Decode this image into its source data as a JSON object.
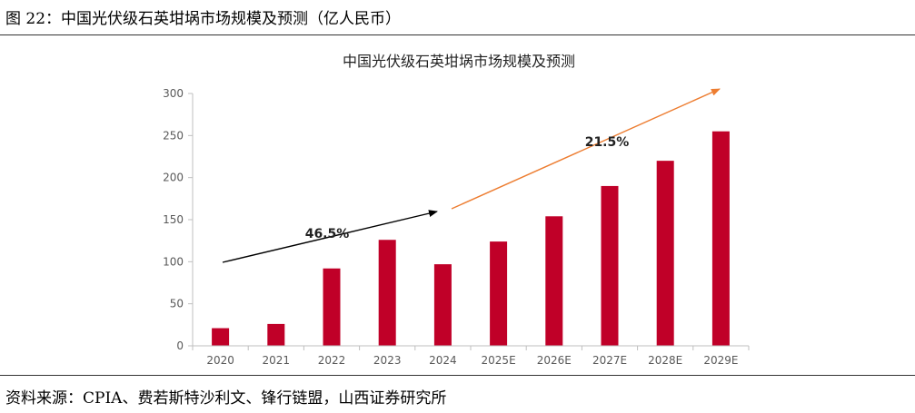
{
  "figure": {
    "caption": "图 22：中国光伏级石英坩埚市场规模及预测（亿人民币）",
    "source": "资料来源：CPIA、费若斯特沙利文、锋行链盟，山西证券研究所"
  },
  "chart_data": {
    "type": "bar",
    "title": "中国光伏级石英坩埚市场规模及预测",
    "xlabel": "",
    "ylabel": "",
    "categories": [
      "2020",
      "2021",
      "2022",
      "2023",
      "2024",
      "2025E",
      "2026E",
      "2027E",
      "2028E",
      "2029E"
    ],
    "values": [
      21,
      26,
      92,
      126,
      97,
      124,
      154,
      190,
      220,
      255
    ],
    "ylim": [
      0,
      300
    ],
    "yticks": [
      0,
      50,
      100,
      150,
      200,
      250,
      300
    ],
    "grid": false,
    "bar_color": "#C00028",
    "annotations": [
      {
        "text": "46.5%",
        "from_category": "2020",
        "to_category": "2024",
        "color": "#000000"
      },
      {
        "text": "21.5%",
        "from_category": "2024",
        "to_category": "2029E",
        "color": "#ED7D31"
      }
    ]
  }
}
